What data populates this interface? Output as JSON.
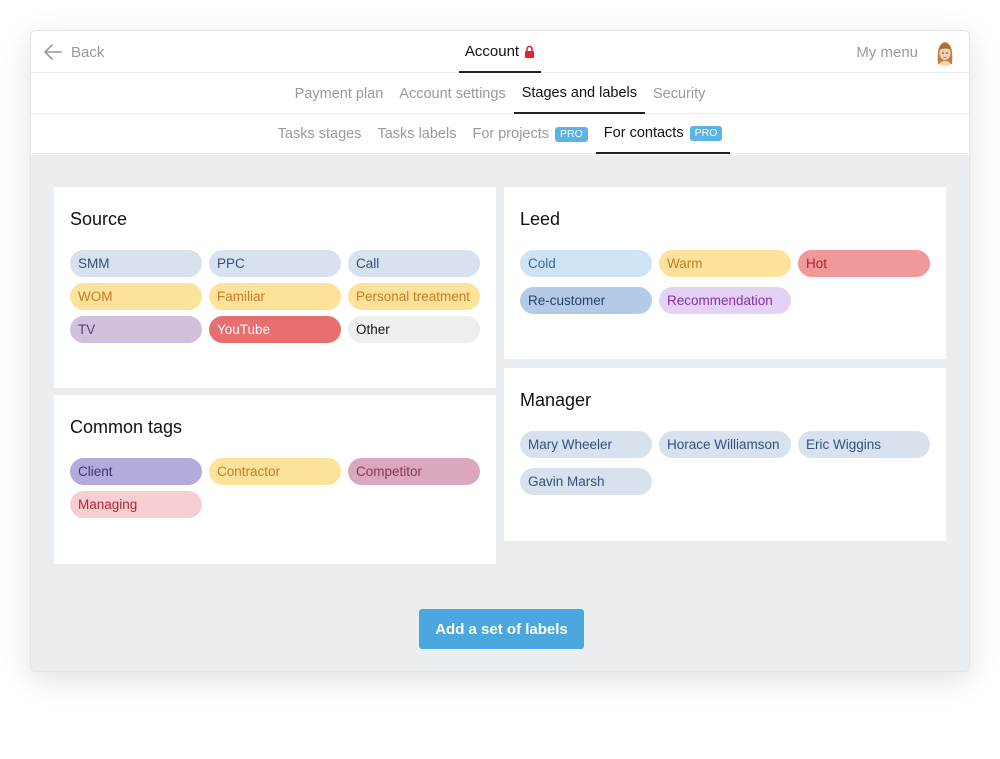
{
  "topbar": {
    "back_label": "Back",
    "title": "Account",
    "menu_label": "My menu"
  },
  "tabs_main": [
    {
      "label": "Payment plan",
      "active": false
    },
    {
      "label": "Account settings",
      "active": false
    },
    {
      "label": "Stages and labels",
      "active": true
    },
    {
      "label": "Security",
      "active": false
    }
  ],
  "tabs_sub": [
    {
      "label": "Tasks stages",
      "pro": false,
      "active": false
    },
    {
      "label": "Tasks labels",
      "pro": false,
      "active": false
    },
    {
      "label": "For projects",
      "pro": true,
      "active": false
    },
    {
      "label": "For contacts",
      "pro": true,
      "active": true
    }
  ],
  "pro_badge": "PRO",
  "cards": {
    "source": {
      "title": "Source",
      "tags": [
        {
          "label": "SMM",
          "bg": "#d8e1ee",
          "fg": "#34507a"
        },
        {
          "label": "PPC",
          "bg": "#d8e1ee",
          "fg": "#34507a"
        },
        {
          "label": "Call",
          "bg": "#d8e1ee",
          "fg": "#34507a"
        },
        {
          "label": "WOM",
          "bg": "#fde39a",
          "fg": "#c9792a"
        },
        {
          "label": "Familiar",
          "bg": "#fde39a",
          "fg": "#c9792a"
        },
        {
          "label": "Personal treatment",
          "bg": "#fde39a",
          "fg": "#c9792a"
        },
        {
          "label": "TV",
          "bg": "#d1c1de",
          "fg": "#5a3d74"
        },
        {
          "label": "YouTube",
          "bg": "#e76f6f",
          "fg": "#ffffff"
        },
        {
          "label": "Other",
          "bg": "#eeeeee",
          "fg": "#111111"
        }
      ]
    },
    "leed": {
      "title": "Leed",
      "tags": [
        {
          "label": "Cold",
          "bg": "#cfe3f5",
          "fg": "#2e6ca5"
        },
        {
          "label": "Warm",
          "bg": "#fde39a",
          "fg": "#c9792a"
        },
        {
          "label": "Hot",
          "bg": "#f0999b",
          "fg": "#b0232b"
        },
        {
          "label": "Re-customer",
          "bg": "#b3cbe6",
          "fg": "#24426a"
        },
        {
          "label": "Recommendation",
          "bg": "#e3d2f5",
          "fg": "#8a2fa8"
        }
      ]
    },
    "common": {
      "title": "Common tags",
      "tags": [
        {
          "label": "Client",
          "bg": "#b4aadb",
          "fg": "#3d3479"
        },
        {
          "label": "Contractor",
          "bg": "#fde39a",
          "fg": "#c9792a"
        },
        {
          "label": "Competitor",
          "bg": "#dba7be",
          "fg": "#86355a"
        },
        {
          "label": "Managing",
          "bg": "#f7cfd3",
          "fg": "#b3262d"
        }
      ]
    },
    "manager": {
      "title": "Manager",
      "tags": [
        {
          "label": "Mary Wheeler",
          "bg": "#d8e1ee",
          "fg": "#34507a"
        },
        {
          "label": "Horace Williamson",
          "bg": "#d8e1ee",
          "fg": "#34507a"
        },
        {
          "label": "Eric Wiggins",
          "bg": "#d8e1ee",
          "fg": "#34507a"
        },
        {
          "label": "Gavin Marsh",
          "bg": "#d8e1ee",
          "fg": "#34507a"
        }
      ]
    }
  },
  "add_button_label": "Add a set of labels",
  "colors": {
    "accent": "#4ba8df",
    "pro_badge": "#5cb3e6",
    "lock": "#e0262c",
    "content_bg": "#eaeef1"
  },
  "icons": {
    "back": "arrow-left-icon",
    "lock": "lock-icon",
    "avatar": "user-avatar"
  }
}
